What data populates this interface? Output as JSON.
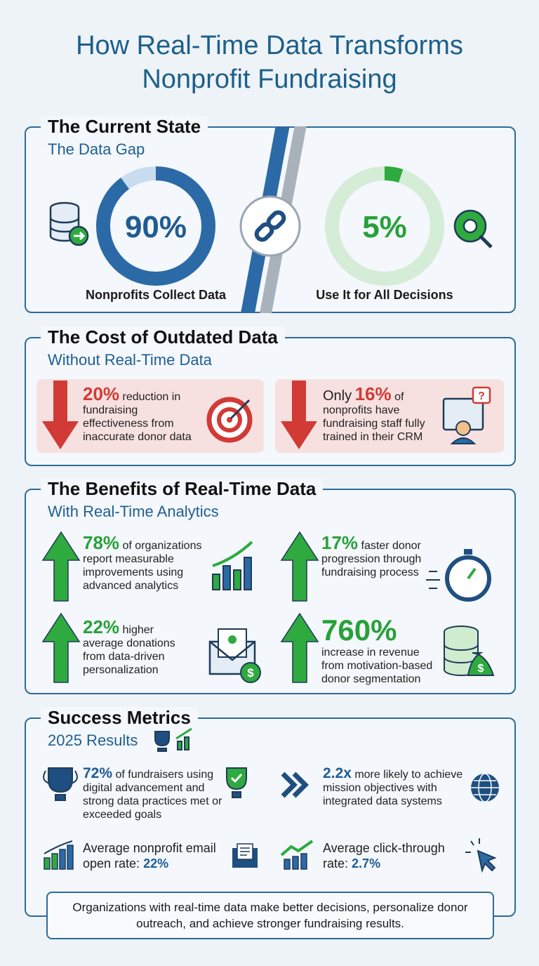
{
  "title": [
    "How Real-Time Data Transforms",
    "Nonprofit Fundraising"
  ],
  "current_state": {
    "heading": "The Current State",
    "subheading": "The Data Gap",
    "stats": [
      {
        "value": 90,
        "label": "90%",
        "caption": "Nonprofits Collect Data"
      },
      {
        "value": 5,
        "label": "5%",
        "caption": "Use It for All Decisions"
      }
    ]
  },
  "cost": {
    "heading": "The Cost of Outdated Data",
    "subheading": "Without Real-Time Data",
    "items": [
      {
        "highlight": "20%",
        "text": "reduction in fundraising effectiveness from inaccurate donor data"
      },
      {
        "prefix": "Only",
        "highlight": "16%",
        "text": "of nonprofits have fundraising staff fully trained in their CRM"
      }
    ]
  },
  "benefits": {
    "heading": "The Benefits of Real-Time Data",
    "subheading": "With Real-Time Analytics",
    "items": [
      {
        "highlight": "78%",
        "text": "of organizations report measurable improvements using advanced analytics"
      },
      {
        "highlight": "17%",
        "text": "faster donor progression through fundraising process"
      },
      {
        "highlight": "22%",
        "text": "higher average donations from data-driven personalization"
      },
      {
        "highlight": "760%",
        "text": "increase in revenue from motivation-based donor segmentation"
      }
    ]
  },
  "metrics": {
    "heading": "Success Metrics",
    "subheading": "2025 Results",
    "items": [
      {
        "highlight": "72%",
        "text": "of fundraisers using digital advancement and strong data practices met or exceeded goals"
      },
      {
        "highlight": "2.2x",
        "text": "more likely to achieve mission objectives with integrated data systems"
      },
      {
        "text": "Average nonprofit email open rate:",
        "highlight": "22%"
      },
      {
        "text": "Average click-through rate:",
        "highlight": "2.7%"
      }
    ]
  },
  "footer": "Organizations with real-time data make better decisions, personalize donor outreach, and achieve stronger fundraising results."
}
